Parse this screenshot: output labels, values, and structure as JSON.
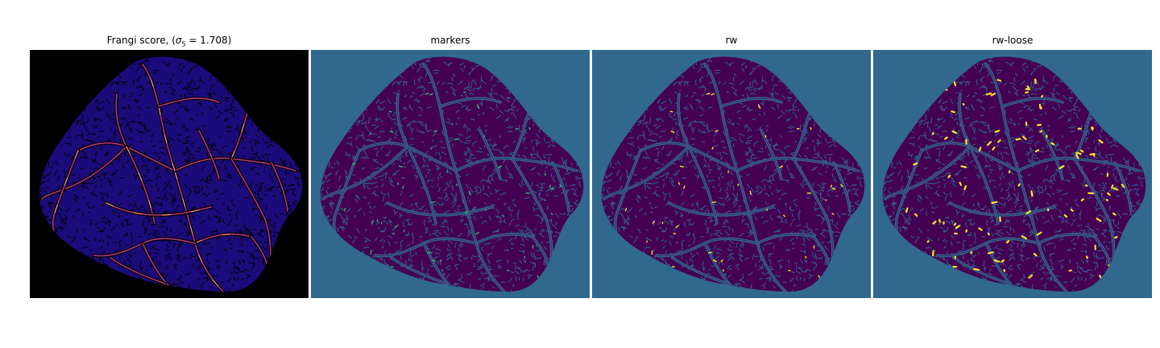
{
  "figure": {
    "panels": [
      {
        "id": "frangi",
        "title_prefix": "Frangi score, (",
        "title_sigma": "σ",
        "title_sub": "5",
        "title_suffix": " = 1.708)",
        "background": "#000000",
        "tissue_color": "#1b0b7a",
        "texture_color": "#000000",
        "vessel_color": "#b5367a",
        "highlight_color": "#fcb87a"
      },
      {
        "id": "markers",
        "title": "markers",
        "background": "#31688e",
        "tissue_color": "#440154",
        "texture_color": "#31688e",
        "vessel_color": "#31688e",
        "marker_color": "#35b779"
      },
      {
        "id": "rw",
        "title": "rw",
        "background": "#31688e",
        "tissue_color": "#440154",
        "texture_color": "#31688e",
        "vessel_color": "#31688e",
        "marker_color": "#fde725"
      },
      {
        "id": "rw-loose",
        "title": "rw-loose",
        "background": "#31688e",
        "tissue_color": "#440154",
        "texture_color": "#31688e",
        "vessel_color": "#31688e",
        "marker_color": "#fde725"
      }
    ]
  }
}
